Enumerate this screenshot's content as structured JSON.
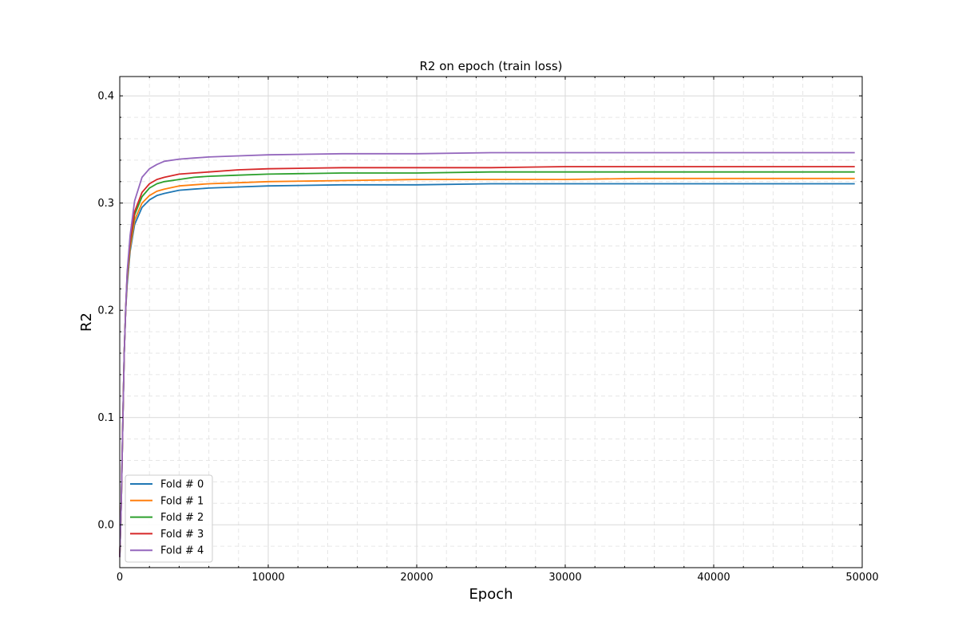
{
  "chart_data": {
    "type": "line",
    "title": "R2 on epoch (train loss)",
    "xlabel": "Epoch",
    "ylabel": "R2",
    "xlim": [
      0,
      50000
    ],
    "ylim": [
      -0.04,
      0.418
    ],
    "x_ticks": [
      0,
      10000,
      20000,
      30000,
      40000,
      50000
    ],
    "x_tick_labels": [
      "0",
      "10000",
      "20000",
      "30000",
      "40000",
      "50000"
    ],
    "y_ticks": [
      0.0,
      0.1,
      0.2,
      0.3,
      0.4
    ],
    "y_tick_labels": [
      "0.0",
      "0.1",
      "0.2",
      "0.3",
      "0.4"
    ],
    "grid": true,
    "legend_position": "lower-left",
    "x": [
      0,
      100,
      200,
      300,
      400,
      500,
      700,
      1000,
      1500,
      2000,
      2500,
      3000,
      4000,
      5000,
      6000,
      8000,
      10000,
      15000,
      20000,
      25000,
      30000,
      35000,
      40000,
      45000,
      49500
    ],
    "series": [
      {
        "name": "Fold # 0",
        "color": "#1f77b4",
        "values": [
          -0.03,
          0.02,
          0.09,
          0.16,
          0.2,
          0.224,
          0.255,
          0.28,
          0.296,
          0.303,
          0.307,
          0.309,
          0.312,
          0.313,
          0.314,
          0.315,
          0.316,
          0.317,
          0.317,
          0.318,
          0.318,
          0.318,
          0.318,
          0.318,
          0.318
        ]
      },
      {
        "name": "Fold # 1",
        "color": "#ff7f0e",
        "values": [
          -0.03,
          0.02,
          0.09,
          0.16,
          0.2,
          0.228,
          0.258,
          0.284,
          0.3,
          0.307,
          0.311,
          0.313,
          0.316,
          0.317,
          0.318,
          0.319,
          0.32,
          0.321,
          0.322,
          0.322,
          0.322,
          0.323,
          0.323,
          0.323,
          0.323
        ]
      },
      {
        "name": "Fold # 2",
        "color": "#2ca02c",
        "values": [
          -0.03,
          0.02,
          0.09,
          0.16,
          0.2,
          0.232,
          0.262,
          0.289,
          0.306,
          0.314,
          0.318,
          0.32,
          0.322,
          0.324,
          0.325,
          0.326,
          0.327,
          0.328,
          0.328,
          0.329,
          0.329,
          0.329,
          0.329,
          0.329,
          0.329
        ]
      },
      {
        "name": "Fold # 3",
        "color": "#d62728",
        "values": [
          -0.03,
          0.02,
          0.09,
          0.16,
          0.2,
          0.234,
          0.264,
          0.292,
          0.31,
          0.318,
          0.322,
          0.324,
          0.327,
          0.328,
          0.329,
          0.331,
          0.332,
          0.333,
          0.333,
          0.333,
          0.334,
          0.334,
          0.334,
          0.334,
          0.334
        ]
      },
      {
        "name": "Fold # 4",
        "color": "#9467bd",
        "values": [
          -0.03,
          0.02,
          0.09,
          0.16,
          0.2,
          0.236,
          0.27,
          0.302,
          0.324,
          0.332,
          0.336,
          0.339,
          0.341,
          0.342,
          0.343,
          0.344,
          0.345,
          0.346,
          0.346,
          0.347,
          0.347,
          0.347,
          0.347,
          0.347,
          0.347
        ]
      }
    ]
  }
}
